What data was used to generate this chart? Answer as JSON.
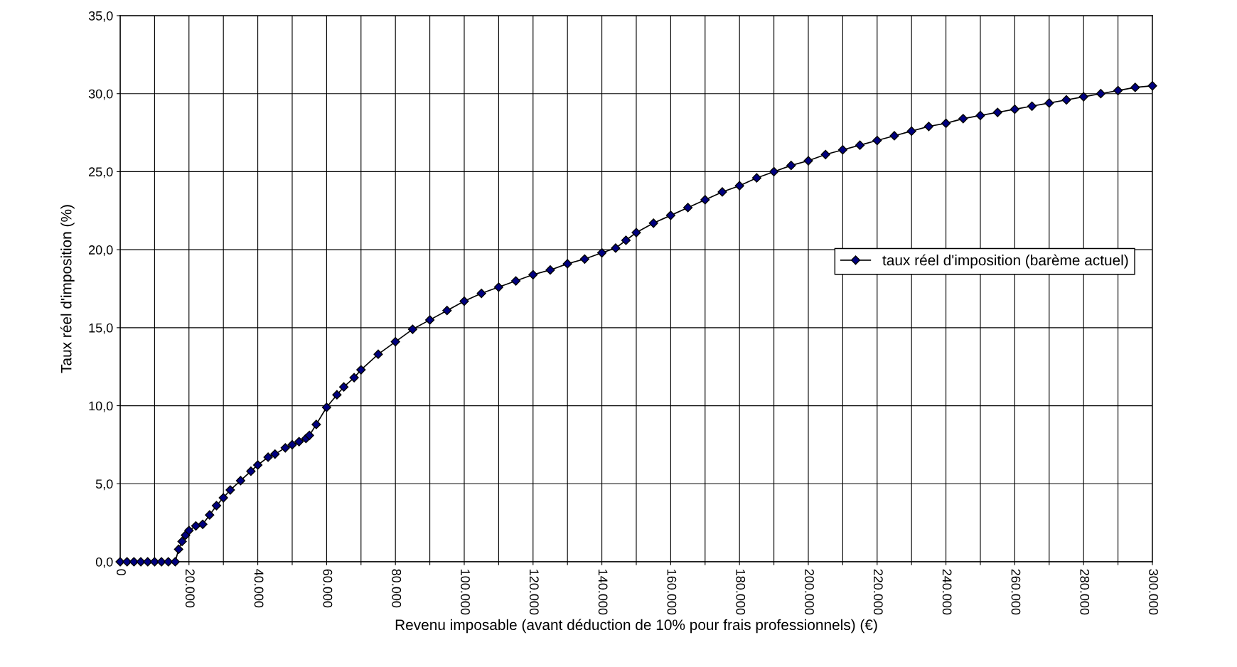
{
  "chart_data": {
    "type": "line",
    "xlabel": "Revenu imposable (avant déduction de 10% pour frais professionnels) (€)",
    "ylabel": "Taux réel d'imposition (%)",
    "xlim": [
      0,
      300000
    ],
    "ylim": [
      0,
      35
    ],
    "xticks": [
      0,
      {
        "value": 10000,
        "label": null
      },
      {
        "value": 20000,
        "label": "20.000"
      },
      {
        "value": 30000,
        "label": null
      },
      {
        "value": 40000,
        "label": "40.000"
      },
      {
        "value": 50000,
        "label": null
      },
      {
        "value": 60000,
        "label": "60.000"
      },
      {
        "value": 70000,
        "label": null
      },
      {
        "value": 80000,
        "label": "80.000"
      },
      {
        "value": 90000,
        "label": null
      },
      {
        "value": 100000,
        "label": "100.000"
      },
      {
        "value": 110000,
        "label": null
      },
      {
        "value": 120000,
        "label": "120.000"
      },
      {
        "value": 130000,
        "label": null
      },
      {
        "value": 140000,
        "label": "140.000"
      },
      {
        "value": 150000,
        "label": null
      },
      {
        "value": 160000,
        "label": "160.000"
      },
      {
        "value": 170000,
        "label": null
      },
      {
        "value": 180000,
        "label": "180.000"
      },
      {
        "value": 190000,
        "label": null
      },
      {
        "value": 200000,
        "label": "200.000"
      },
      {
        "value": 210000,
        "label": null
      },
      {
        "value": 220000,
        "label": "220.000"
      },
      {
        "value": 230000,
        "label": null
      },
      {
        "value": 240000,
        "label": "240.000"
      },
      {
        "value": 250000,
        "label": null
      },
      {
        "value": 260000,
        "label": "260.000"
      },
      {
        "value": 270000,
        "label": null
      },
      {
        "value": 280000,
        "label": "280.000"
      },
      {
        "value": 290000,
        "label": null
      },
      {
        "value": 300000,
        "label": "300.000"
      }
    ],
    "yticks": [
      {
        "value": 0,
        "label": "0,0"
      },
      {
        "value": 5,
        "label": "5,0"
      },
      {
        "value": 10,
        "label": "10,0"
      },
      {
        "value": 15,
        "label": "15,0"
      },
      {
        "value": 20,
        "label": "20,0"
      },
      {
        "value": 25,
        "label": "25,0"
      },
      {
        "value": 30,
        "label": "30,0"
      },
      {
        "value": 35,
        "label": "35,0"
      }
    ],
    "grid": true,
    "legend": "right",
    "marker": "diamond",
    "line_style": "solid",
    "x": [
      0,
      2000,
      4000,
      6000,
      8000,
      10000,
      12000,
      14000,
      16000,
      17000,
      18000,
      19000,
      20000,
      22000,
      24000,
      26000,
      28000,
      30000,
      32000,
      35000,
      38000,
      40000,
      43000,
      45000,
      48000,
      50000,
      52000,
      54000,
      55000,
      57000,
      60000,
      63000,
      65000,
      68000,
      70000,
      75000,
      80000,
      85000,
      90000,
      95000,
      100000,
      105000,
      110000,
      115000,
      120000,
      125000,
      130000,
      135000,
      140000,
      144000,
      147000,
      150000,
      155000,
      160000,
      165000,
      170000,
      175000,
      180000,
      185000,
      190000,
      195000,
      200000,
      205000,
      210000,
      215000,
      220000,
      225000,
      230000,
      235000,
      240000,
      245000,
      250000,
      255000,
      260000,
      265000,
      270000,
      275000,
      280000,
      285000,
      290000,
      295000,
      300000
    ],
    "series": [
      {
        "name": "taux réel d'imposition (barème actuel)",
        "color": "#000080",
        "values": [
          0,
          0,
          0,
          0,
          0,
          0,
          0,
          0,
          0,
          0.8,
          1.3,
          1.7,
          2.0,
          2.3,
          2.4,
          3.0,
          3.6,
          4.1,
          4.6,
          5.2,
          5.8,
          6.2,
          6.7,
          6.9,
          7.3,
          7.5,
          7.7,
          7.9,
          8.1,
          8.8,
          9.9,
          10.7,
          11.2,
          11.8,
          12.3,
          13.3,
          14.1,
          14.9,
          15.5,
          16.1,
          16.7,
          17.2,
          17.6,
          18.0,
          18.4,
          18.7,
          19.1,
          19.4,
          19.8,
          20.1,
          20.6,
          21.1,
          21.7,
          22.2,
          22.7,
          23.2,
          23.7,
          24.1,
          24.6,
          25.0,
          25.4,
          25.7,
          26.1,
          26.4,
          26.7,
          27.0,
          27.3,
          27.6,
          27.9,
          28.1,
          28.4,
          28.6,
          28.8,
          29.0,
          29.2,
          29.4,
          29.6,
          29.8,
          30.0,
          30.2,
          30.4,
          30.5
        ]
      }
    ]
  }
}
